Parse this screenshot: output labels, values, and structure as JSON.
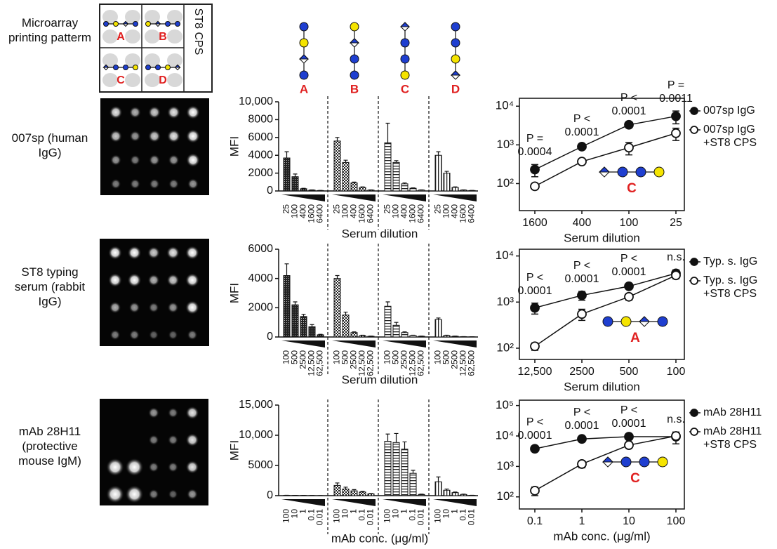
{
  "row_labels": [
    "Microarray printing patterm",
    "007sp (human IgG)",
    "ST8 typing serum (rabbit IgG)",
    "mAb 28H11 (protective mouse IgM)"
  ],
  "printing_pattern": {
    "label": "ST8 CPS"
  },
  "glycans": [
    "A",
    "B",
    "C",
    "D"
  ],
  "chart_data": [
    {
      "type": "bar",
      "ylabel": "MFI",
      "xlabel": "Serum dilution",
      "categories": [
        "25",
        "100",
        "400",
        "1600",
        "6400"
      ],
      "series": [
        {
          "values": [
            3700,
            1600,
            250,
            100,
            50
          ],
          "errors": [
            700,
            300,
            50,
            20,
            10
          ]
        },
        {
          "values": [
            5600,
            3200,
            900,
            400,
            100
          ],
          "errors": [
            400,
            250,
            100,
            50,
            20
          ]
        },
        {
          "values": [
            5400,
            3200,
            800,
            300,
            100
          ],
          "errors": [
            2200,
            200,
            100,
            50,
            20
          ]
        },
        {
          "values": [
            4000,
            2000,
            400,
            100,
            50
          ],
          "errors": [
            400,
            200,
            50,
            20,
            10
          ]
        }
      ],
      "ylim": [
        0,
        10000
      ],
      "yticks": [
        0,
        2000,
        4000,
        6000,
        8000,
        {
          "value": 10000,
          "label": "10,000"
        }
      ]
    },
    {
      "type": "line",
      "xlabel": "Serum dilution",
      "log_y": true,
      "categories": [
        "1600",
        "400",
        "100",
        "25"
      ],
      "series": [
        {
          "name": "007sp IgG",
          "marker": "filled",
          "values": [
            230,
            900,
            3300,
            5500
          ],
          "errors": [
            80,
            100,
            300,
            2000
          ]
        },
        {
          "name": "007sp IgG +ST8 CPS",
          "marker": "open",
          "values": [
            85,
            370,
            850,
            2000
          ],
          "errors": [
            10,
            40,
            300,
            700
          ]
        }
      ],
      "ylim": [
        20,
        16000
      ],
      "yticks": [
        {
          "value": 100,
          "label": "10²"
        },
        {
          "value": 1000,
          "label": "10³"
        },
        {
          "value": 10000,
          "label": "10⁴"
        }
      ],
      "annotations": [
        "P = 0.0004",
        "P < 0.0001",
        "P < 0.0001",
        "P = 0.0011"
      ],
      "inset_label": "C"
    },
    {
      "type": "bar",
      "ylabel": "MFI",
      "xlabel": "Serum dilution",
      "categories": [
        "100",
        "500",
        "2500",
        "12,500",
        "62,500"
      ],
      "series": [
        {
          "values": [
            4200,
            2200,
            1400,
            700,
            150
          ],
          "errors": [
            800,
            200,
            150,
            150,
            30
          ]
        },
        {
          "values": [
            4000,
            1500,
            300,
            100,
            50
          ],
          "errors": [
            200,
            200,
            50,
            20,
            10
          ]
        },
        {
          "values": [
            2100,
            800,
            300,
            100,
            50
          ],
          "errors": [
            300,
            200,
            50,
            20,
            10
          ]
        },
        {
          "values": [
            1200,
            100,
            50,
            20,
            10
          ],
          "errors": [
            100,
            20,
            10,
            5,
            5
          ]
        }
      ],
      "ylim": [
        0,
        6000
      ],
      "yticks": [
        0,
        2000,
        4000,
        6000
      ]
    },
    {
      "type": "line",
      "xlabel": "Serum dilution",
      "log_y": true,
      "categories": [
        "12,500",
        "2500",
        "500",
        "100"
      ],
      "series": [
        {
          "name": "Typ. s. IgG",
          "marker": "filled",
          "values": [
            750,
            1400,
            2200,
            4200
          ],
          "errors": [
            200,
            300,
            200,
            800
          ]
        },
        {
          "name": "Typ. s. IgG +ST8 CPS",
          "marker": "open",
          "values": [
            110,
            550,
            1300,
            3800
          ],
          "errors": [
            20,
            150,
            200,
            600
          ]
        }
      ],
      "ylim": [
        57,
        14000
      ],
      "yticks": [
        {
          "value": 100,
          "label": "10²"
        },
        {
          "value": 1000,
          "label": "10³"
        },
        {
          "value": 10000,
          "label": "10⁴"
        }
      ],
      "annotations": [
        "P < 0.0001",
        "P < 0.0001",
        "P < 0.0001",
        "n.s."
      ],
      "inset_label": "A"
    },
    {
      "type": "bar",
      "ylabel": "MFI",
      "xlabel": "mAb conc. (μg/ml)",
      "categories": [
        "100",
        "10",
        "1",
        "0.1",
        "0.01"
      ],
      "series": [
        {
          "values": [
            50,
            40,
            30,
            20,
            10
          ],
          "errors": [
            10,
            10,
            10,
            5,
            5
          ]
        },
        {
          "values": [
            1700,
            1100,
            800,
            600,
            300
          ],
          "errors": [
            400,
            300,
            200,
            100,
            50
          ]
        },
        {
          "values": [
            9000,
            8800,
            7700,
            3700,
            200
          ],
          "errors": [
            1200,
            1500,
            1200,
            500,
            50
          ]
        },
        {
          "values": [
            2300,
            900,
            500,
            200,
            50
          ],
          "errors": [
            800,
            200,
            100,
            50,
            10
          ]
        }
      ],
      "ylim": [
        0,
        15000
      ],
      "yticks": [
        0,
        5000,
        {
          "value": 10000,
          "label": "10,000"
        },
        {
          "value": 15000,
          "label": "15,000"
        }
      ]
    },
    {
      "type": "line",
      "xlabel": "mAb conc. (μg/ml)",
      "log_y": true,
      "categories": [
        "0.1",
        "1",
        "10",
        "100"
      ],
      "series": [
        {
          "name": "mAb 28H11",
          "marker": "filled",
          "values": [
            3800,
            8000,
            9500,
            9500
          ],
          "errors": [
            300,
            500,
            500,
            4000
          ]
        },
        {
          "name": "mAb 28H11 +ST8 CPS",
          "marker": "open",
          "values": [
            160,
            1200,
            5000,
            10000
          ],
          "errors": [
            50,
            300,
            500,
            2000
          ]
        }
      ],
      "ylim": [
        40,
        150000
      ],
      "yticks": [
        {
          "value": 100,
          "label": "10²"
        },
        {
          "value": 1000,
          "label": "10³"
        },
        {
          "value": 10000,
          "label": "10⁴"
        },
        {
          "value": 100000,
          "label": "10⁵"
        }
      ],
      "annotations": [
        "P < 0.0001",
        "P < 0.0001",
        "P < 0.0001",
        "n.s."
      ],
      "inset_label": "C"
    }
  ]
}
